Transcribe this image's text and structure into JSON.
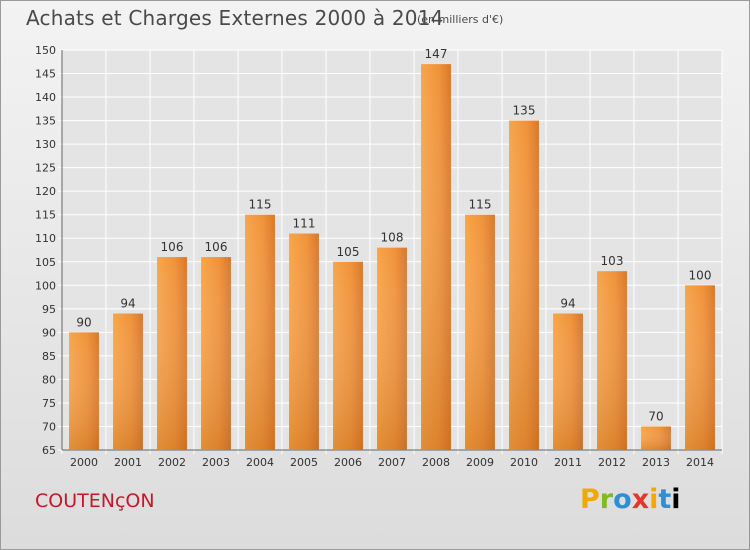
{
  "chart_data": {
    "type": "bar",
    "title": "Achats et Charges Externes 2000 à 2014",
    "subtitle": "(en milliers d'€)",
    "categories": [
      "2000",
      "2001",
      "2002",
      "2003",
      "2004",
      "2005",
      "2006",
      "2007",
      "2008",
      "2009",
      "2010",
      "2011",
      "2012",
      "2013",
      "2014"
    ],
    "values": [
      90,
      94,
      106,
      106,
      115,
      111,
      105,
      108,
      147,
      115,
      135,
      94,
      103,
      70,
      100
    ],
    "ylim": [
      65,
      150
    ],
    "yticks": [
      65,
      70,
      75,
      80,
      85,
      90,
      95,
      100,
      105,
      110,
      115,
      120,
      125,
      130,
      135,
      140,
      145,
      150
    ],
    "grid": true,
    "bar_color": "#f0923a",
    "legend": "none"
  },
  "footer": {
    "commune": "COUTENçON",
    "brand_letters": [
      "P",
      "r",
      "o",
      "x",
      "i",
      "t",
      "i"
    ]
  }
}
